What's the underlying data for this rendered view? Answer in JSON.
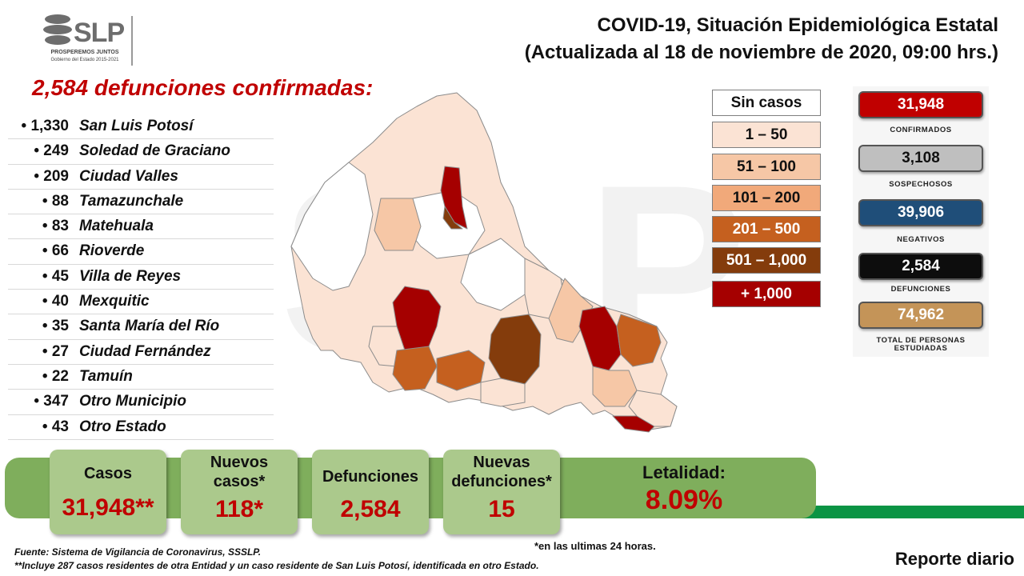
{
  "logo": {
    "text": "SLP",
    "slogan": "PROSPEREMOS JUNTOS",
    "government": "Gobierno del Estado 2015-2021"
  },
  "title": {
    "line1": "COVID-19, Situación Epidemiológica Estatal",
    "line2": "(Actualizada al 18 de noviembre de 2020, 09:00 hrs.)"
  },
  "deaths_heading": "2,584 defunciones confirmadas:",
  "municipalities": [
    {
      "count": "• 1,330",
      "name": "San Luis Potosí"
    },
    {
      "count": "• 249",
      "name": "Soledad de Graciano"
    },
    {
      "count": "• 209",
      "name": "Ciudad Valles"
    },
    {
      "count": "• 88",
      "name": "Tamazunchale"
    },
    {
      "count": "• 83",
      "name": "Matehuala"
    },
    {
      "count": "• 66",
      "name": "Rioverde"
    },
    {
      "count": "• 45",
      "name": "Villa de Reyes"
    },
    {
      "count": "• 40",
      "name": "Mexquitic"
    },
    {
      "count": "• 35",
      "name": "Santa María del Río"
    },
    {
      "count": "• 27",
      "name": "Ciudad Fernández"
    },
    {
      "count": "• 22",
      "name": "Tamuín"
    },
    {
      "count": "• 347",
      "name": "Otro Municipio"
    },
    {
      "count": "• 43",
      "name": "Otro Estado"
    }
  ],
  "legend": [
    {
      "label": "Sin casos",
      "color": "#ffffff",
      "text_color": "#111111"
    },
    {
      "label": "1 – 50",
      "color": "#fbe3d4",
      "text_color": "#111111"
    },
    {
      "label": "51 – 100",
      "color": "#f6c7a6",
      "text_color": "#111111"
    },
    {
      "label": "101 – 200",
      "color": "#f1a97a",
      "text_color": "#111111"
    },
    {
      "label": "201 – 500",
      "color": "#c5601f",
      "text_color": "#ffffff"
    },
    {
      "label": "501 – 1,000",
      "color": "#843c0c",
      "text_color": "#ffffff"
    },
    {
      "label": "+ 1,000",
      "color": "#a50000",
      "text_color": "#ffffff"
    }
  ],
  "stats": [
    {
      "value": "31,948",
      "label": "CONFIRMADOS",
      "color": "#c00000",
      "text_color": "#ffffff"
    },
    {
      "value": "3,108",
      "label": "SOSPECHOSOS",
      "color": "#bfbfbf",
      "text_color": "#111111"
    },
    {
      "value": "39,906",
      "label": "NEGATIVOS",
      "color": "#1f4e79",
      "text_color": "#ffffff"
    },
    {
      "value": "2,584",
      "label": "DEFUNCIONES",
      "color": "#0d0d0d",
      "text_color": "#ffffff"
    },
    {
      "value": "74,962",
      "label": "TOTAL DE PERSONAS ESTUDIADAS",
      "color": "#c49458",
      "text_color": "#ffffff"
    }
  ],
  "summary": {
    "cases_label": "Casos",
    "cases_value": "31,948**",
    "new_cases_label": "Nuevos casos*",
    "new_cases_value": "118*",
    "deaths_label": "Defunciones",
    "deaths_value": "2,584",
    "new_deaths_label": "Nuevas defunciones*",
    "new_deaths_value": "15",
    "lethality_label": "Letalidad:",
    "lethality_value": "8.09%"
  },
  "footnote_24h": "*en las ultimas 24 horas.",
  "source": "Fuente: Sistema de Vigilancia de Coronavirus, SSSLP.",
  "includes_note": "**Incluye 287 casos residentes de otra Entidad y un caso residente de San Luis Potosí, identificada en otro Estado.",
  "report_label": "Reporte diario"
}
